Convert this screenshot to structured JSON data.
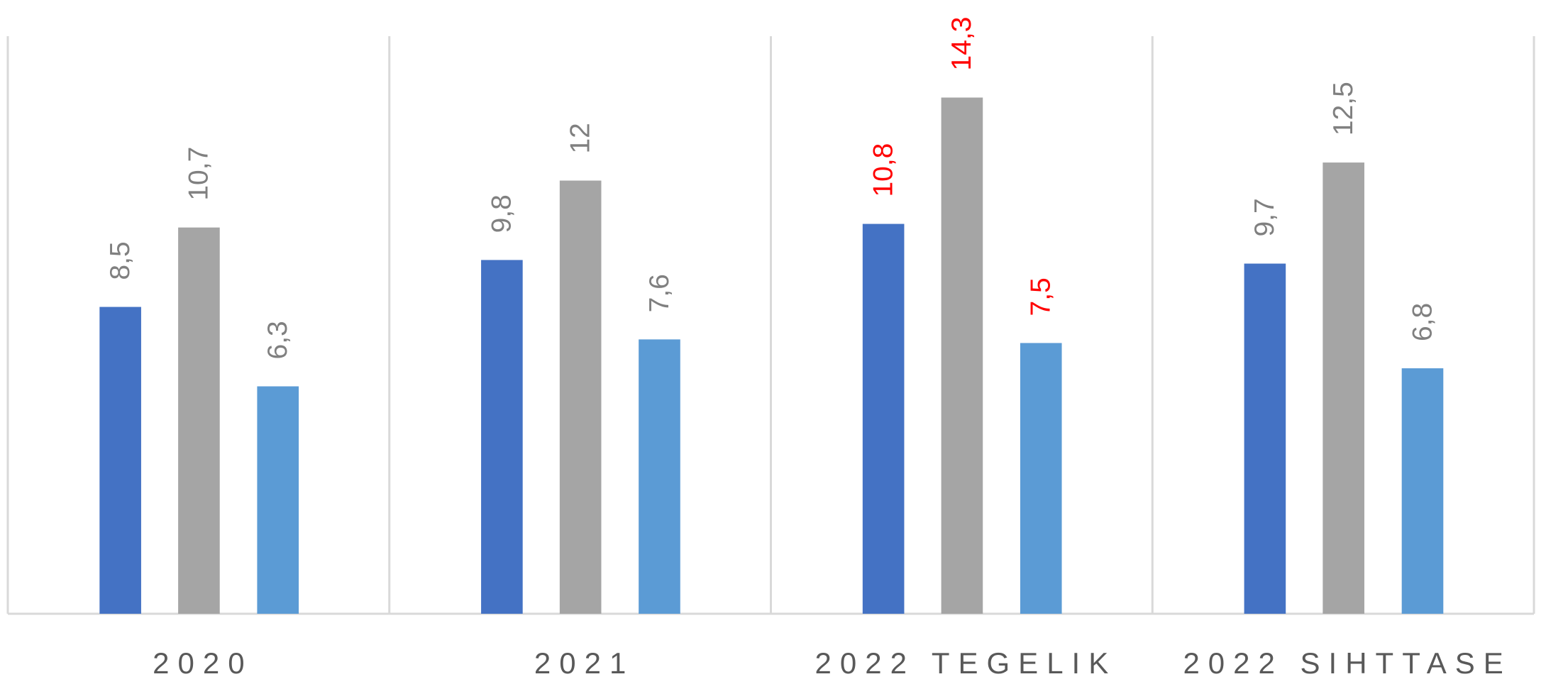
{
  "chart_data": {
    "type": "bar",
    "categories": [
      "2020",
      "2021",
      "2022 TEGELIK",
      "2022 SIHTTASE"
    ],
    "series": [
      {
        "color": "#4472c4",
        "values": [
          8.5,
          9.8,
          10.8,
          9.7
        ],
        "value_labels": [
          "8,5",
          "9,8",
          "10,8",
          "9,7"
        ],
        "label_colors": [
          "#808080",
          "#808080",
          "#ff0000",
          "#808080"
        ]
      },
      {
        "color": "#a5a5a5",
        "values": [
          10.7,
          12,
          14.3,
          12.5
        ],
        "value_labels": [
          "10,7",
          "12",
          "14,3",
          "12,5"
        ],
        "label_colors": [
          "#808080",
          "#808080",
          "#ff0000",
          "#808080"
        ]
      },
      {
        "color": "#5b9bd5",
        "values": [
          6.3,
          7.6,
          7.5,
          6.8
        ],
        "value_labels": [
          "6,3",
          "7,6",
          "7,5",
          "6,8"
        ],
        "label_colors": [
          "#808080",
          "#808080",
          "#ff0000",
          "#808080"
        ]
      }
    ],
    "ylim": [
      0,
      16
    ]
  }
}
